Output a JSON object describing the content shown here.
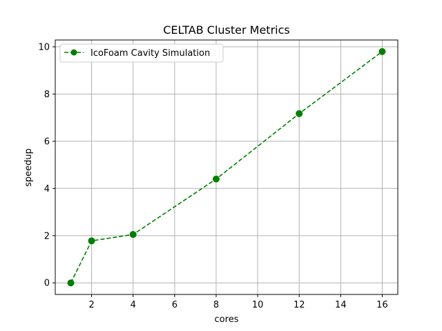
{
  "chart_data": {
    "type": "line",
    "title": "CELTAB Cluster Metrics",
    "xlabel": "cores",
    "ylabel": "speedup",
    "xlim": [
      0.25,
      16.75
    ],
    "ylim": [
      -0.49,
      10.29
    ],
    "xticks": [
      2,
      4,
      6,
      8,
      10,
      12,
      14,
      16
    ],
    "yticks": [
      0,
      2,
      4,
      6,
      8,
      10
    ],
    "grid": true,
    "legend_position": "top-left",
    "series": [
      {
        "name": "IcoFoam Cavity Simulation",
        "color": "#008000",
        "line_style": "dashed",
        "marker": "circle",
        "x": [
          1,
          2,
          4,
          8,
          12,
          16
        ],
        "y": [
          0.0,
          1.78,
          2.05,
          4.4,
          7.17,
          9.8
        ]
      }
    ]
  }
}
